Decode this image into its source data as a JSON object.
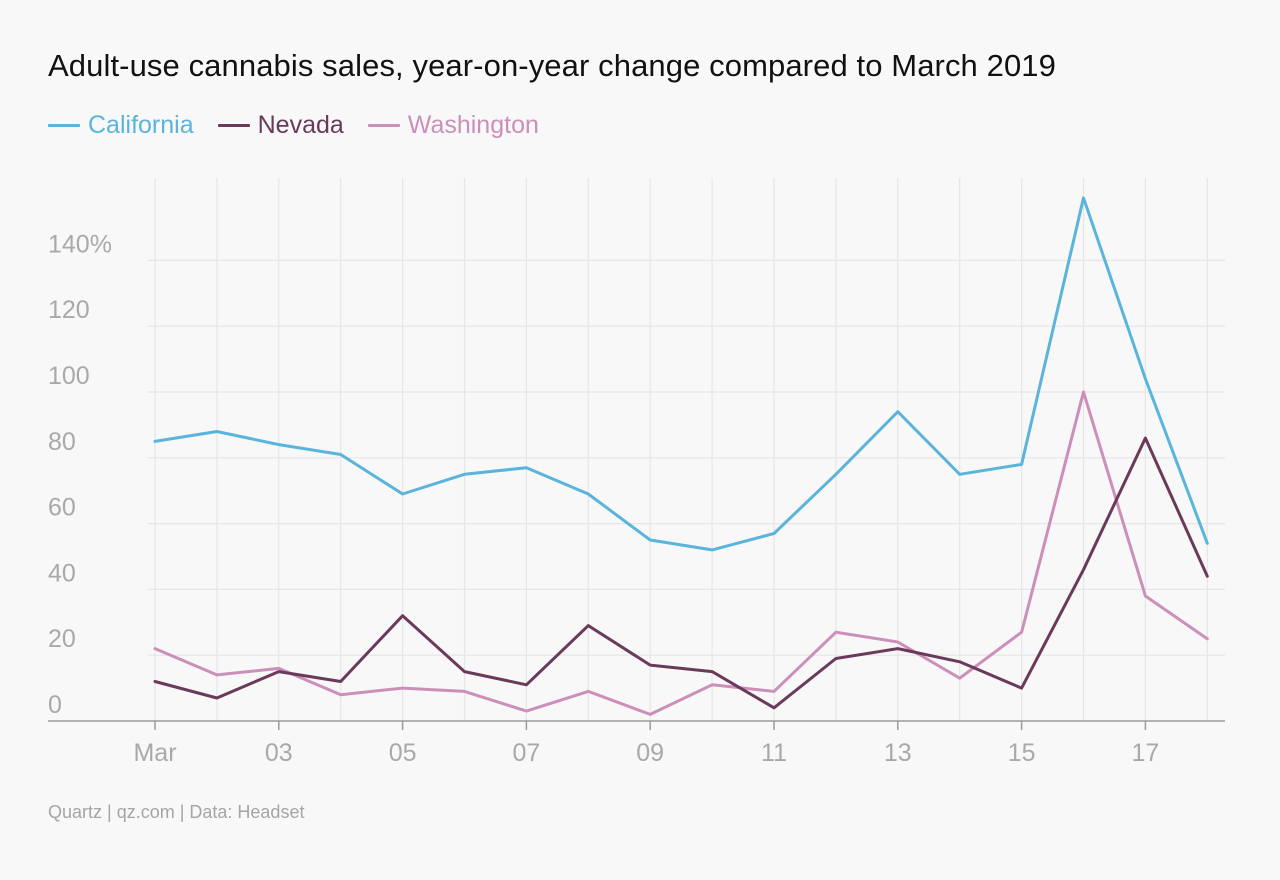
{
  "chart_data": {
    "type": "line",
    "title": "Adult-use cannabis sales, year-on-year change compared to March 2019",
    "xlabel": "",
    "ylabel": "",
    "x": [
      1,
      2,
      3,
      4,
      5,
      6,
      7,
      8,
      9,
      10,
      11,
      12,
      13,
      14,
      15,
      16,
      17,
      18
    ],
    "x_ticks": [
      {
        "x": 1,
        "label": "Mar"
      },
      {
        "x": 3,
        "label": "03"
      },
      {
        "x": 5,
        "label": "05"
      },
      {
        "x": 7,
        "label": "07"
      },
      {
        "x": 9,
        "label": "09"
      },
      {
        "x": 11,
        "label": "11"
      },
      {
        "x": 13,
        "label": "13"
      },
      {
        "x": 15,
        "label": "15"
      },
      {
        "x": 17,
        "label": "17"
      }
    ],
    "y_ticks": [
      {
        "y": 0,
        "label": "0"
      },
      {
        "y": 20,
        "label": "20"
      },
      {
        "y": 40,
        "label": "40"
      },
      {
        "y": 60,
        "label": "60"
      },
      {
        "y": 80,
        "label": "80"
      },
      {
        "y": 100,
        "label": "100"
      },
      {
        "y": 120,
        "label": "120"
      },
      {
        "y": 140,
        "label": "140%"
      }
    ],
    "ylim": [
      0,
      165
    ],
    "xlim": [
      0,
      18.25
    ],
    "grid": true,
    "legend_position": "top-left",
    "series": [
      {
        "name": "California",
        "color": "#5ab4dc",
        "values": [
          85,
          88,
          84,
          81,
          69,
          75,
          77,
          69,
          55,
          52,
          57,
          75,
          94,
          75,
          78,
          159,
          104,
          54
        ]
      },
      {
        "name": "Nevada",
        "color": "#6a3a5a",
        "values": [
          12,
          7,
          15,
          12,
          32,
          15,
          11,
          29,
          17,
          15,
          4,
          19,
          22,
          18,
          10,
          46,
          86,
          44
        ]
      },
      {
        "name": "Washington",
        "color": "#cc8fba",
        "values": [
          22,
          14,
          16,
          8,
          10,
          9,
          3,
          9,
          2,
          11,
          9,
          27,
          24,
          13,
          27,
          100,
          38,
          25
        ]
      }
    ]
  },
  "legend": {
    "items": [
      {
        "label": "California",
        "color": "#5ab4dc"
      },
      {
        "label": "Nevada",
        "color": "#6a3a5a"
      },
      {
        "label": "Washington",
        "color": "#cc8fba"
      }
    ]
  },
  "source": "Quartz | qz.com | Data: Headset"
}
